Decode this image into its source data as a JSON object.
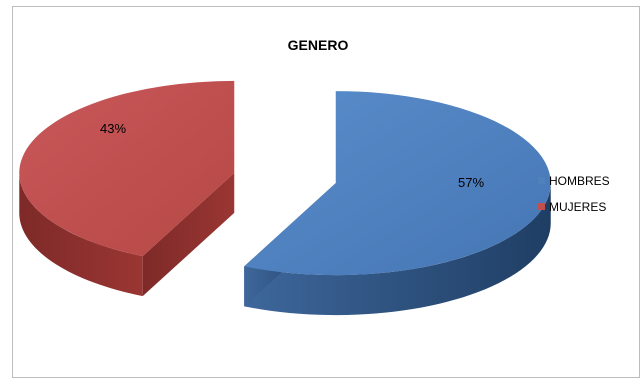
{
  "chart_data": {
    "type": "pie",
    "title": "GENERO",
    "categories": [
      "HOMBRES",
      "MUJERES"
    ],
    "values": [
      57,
      43
    ],
    "data_labels": [
      "57%",
      "43%"
    ],
    "colors": [
      "#4F81BD",
      "#C0504D"
    ],
    "exploded": true,
    "three_d": true,
    "legend_position": "right"
  }
}
